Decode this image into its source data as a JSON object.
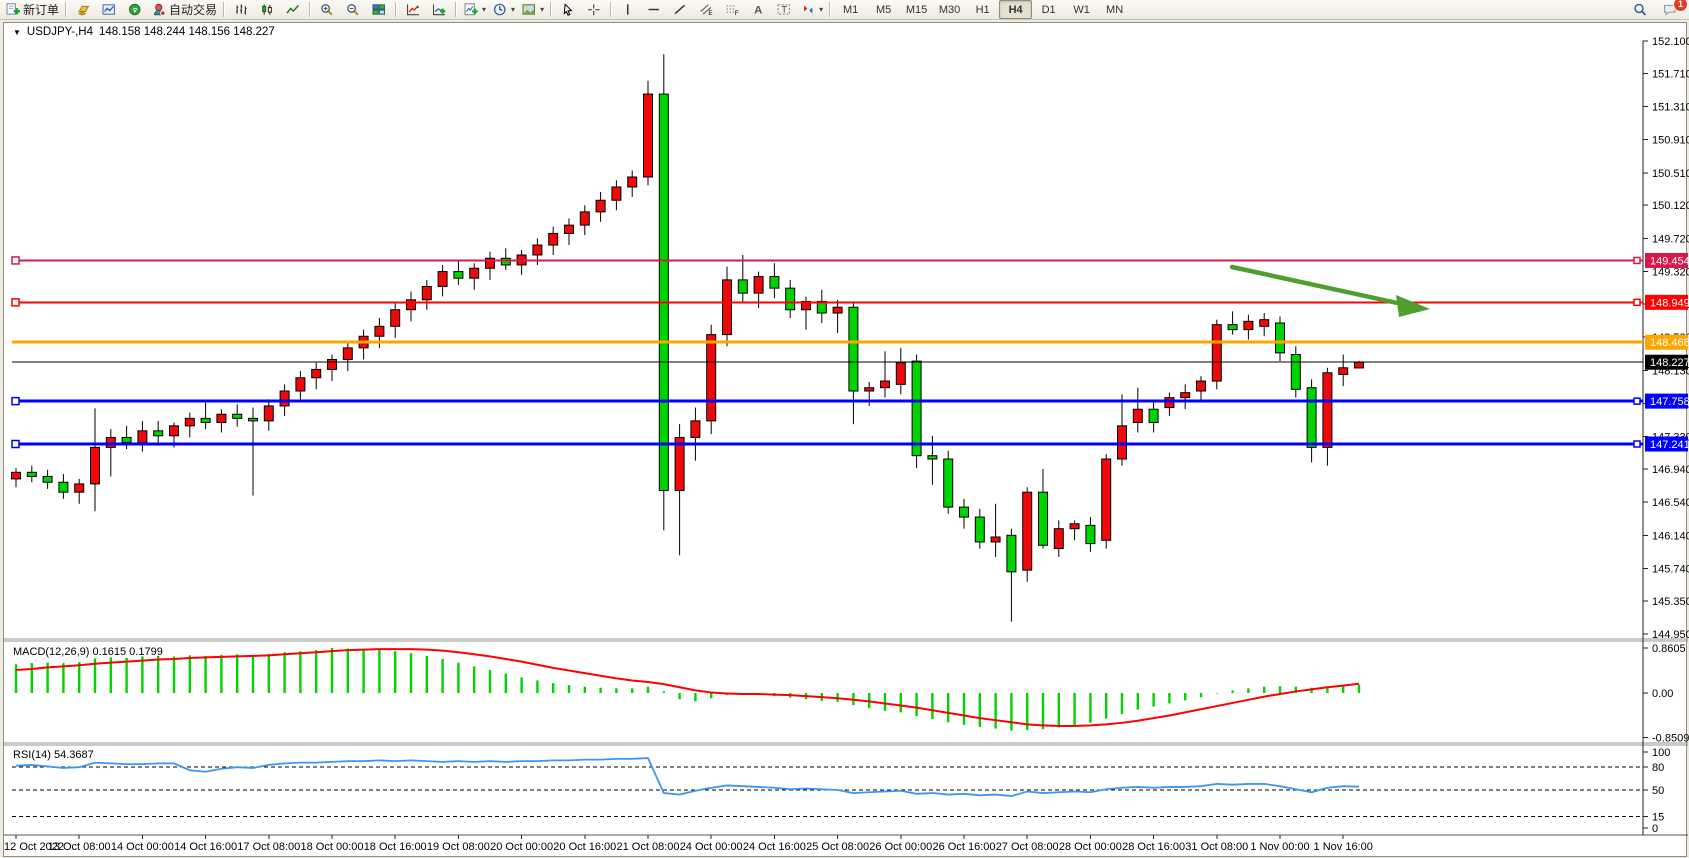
{
  "toolbar": {
    "buttons": [
      {
        "name": "new-order",
        "label": "新订单"
      },
      {
        "name": "sep"
      },
      {
        "name": "quotes"
      },
      {
        "name": "charts"
      },
      {
        "name": "signals"
      },
      {
        "name": "autotrade",
        "label": "自动交易"
      },
      {
        "name": "sep"
      },
      {
        "name": "bar-chart"
      },
      {
        "name": "candlestick"
      },
      {
        "name": "line-chart"
      },
      {
        "name": "sep"
      },
      {
        "name": "zoom-in"
      },
      {
        "name": "zoom-out"
      },
      {
        "name": "tile-windows"
      },
      {
        "name": "sep"
      },
      {
        "name": "indicator-list"
      },
      {
        "name": "indicator-add"
      },
      {
        "name": "sep"
      },
      {
        "name": "new-chart",
        "dropdown": true
      },
      {
        "name": "periods-clock",
        "dropdown": true
      },
      {
        "name": "templates",
        "dropdown": true
      },
      {
        "name": "sep"
      },
      {
        "name": "cursor"
      },
      {
        "name": "crosshair"
      },
      {
        "name": "sep"
      },
      {
        "name": "vertical-line"
      },
      {
        "name": "horizontal-line"
      },
      {
        "name": "trendline"
      },
      {
        "name": "equidistant-channel"
      },
      {
        "name": "fibonacci"
      },
      {
        "name": "text"
      },
      {
        "name": "text-label"
      },
      {
        "name": "arrows",
        "dropdown": true
      },
      {
        "name": "sep"
      }
    ],
    "timeframes": [
      "M1",
      "M5",
      "M15",
      "M30",
      "H1",
      "H4",
      "D1",
      "W1",
      "MN"
    ],
    "active_timeframe": "H4",
    "right_buttons": [
      {
        "name": "search"
      },
      {
        "name": "chat",
        "badge": "1"
      }
    ]
  },
  "window": {
    "collapse_marker": "▼",
    "title_symbol": "USDJPY-,H4",
    "title_quote": "148.158 148.244 148.156 148.227"
  },
  "chart_data": {
    "type": "candlestick",
    "symbol": "USDJPY-",
    "timeframe": "H4",
    "current_ohlc": {
      "open": 148.158,
      "high": 148.244,
      "low": 148.156,
      "close": 148.227
    },
    "ylim": [
      144.95,
      152.1
    ],
    "price_ticks": [
      "152.100",
      "151.710",
      "151.310",
      "150.910",
      "150.510",
      "150.120",
      "149.720",
      "149.320",
      "148.930",
      "148.530",
      "148.130",
      "147.730",
      "147.330",
      "146.940",
      "146.540",
      "146.140",
      "145.740",
      "145.350",
      "144.950"
    ],
    "x_labels": [
      "12 Oct 2022",
      "13 Oct 08:00",
      "14 Oct 00:00",
      "14 Oct 16:00",
      "17 Oct 08:00",
      "18 Oct 00:00",
      "18 Oct 16:00",
      "19 Oct 08:00",
      "20 Oct 00:00",
      "20 Oct 16:00",
      "21 Oct 08:00",
      "24 Oct 00:00",
      "24 Oct 16:00",
      "25 Oct 08:00",
      "26 Oct 00:00",
      "26 Oct 16:00",
      "27 Oct 08:00",
      "28 Oct 00:00",
      "28 Oct 16:00",
      "31 Oct 08:00",
      "1 Nov 00:00",
      "1 Nov 16:00"
    ],
    "x_label_step": 4,
    "colors": {
      "bull": "#ee0a0a",
      "bear": "#00d400",
      "outline": "#000000",
      "wick": "#000000",
      "arrow": "#4f9e2e"
    },
    "candles": [
      [
        146.82,
        146.95,
        146.72,
        146.9
      ],
      [
        146.9,
        146.98,
        146.78,
        146.85
      ],
      [
        146.85,
        146.93,
        146.7,
        146.78
      ],
      [
        146.78,
        146.88,
        146.58,
        146.66
      ],
      [
        146.66,
        146.82,
        146.52,
        146.76
      ],
      [
        146.76,
        147.67,
        146.43,
        147.2
      ],
      [
        147.2,
        147.42,
        146.85,
        147.32
      ],
      [
        147.32,
        147.46,
        147.18,
        147.26
      ],
      [
        147.26,
        147.52,
        147.15,
        147.4
      ],
      [
        147.4,
        147.52,
        147.22,
        147.34
      ],
      [
        147.34,
        147.5,
        147.2,
        147.46
      ],
      [
        147.46,
        147.62,
        147.32,
        147.55
      ],
      [
        147.55,
        147.74,
        147.42,
        147.5
      ],
      [
        147.5,
        147.66,
        147.38,
        147.6
      ],
      [
        147.6,
        147.72,
        147.45,
        147.55
      ],
      [
        147.55,
        147.68,
        146.62,
        147.52
      ],
      [
        147.52,
        147.78,
        147.4,
        147.7
      ],
      [
        147.7,
        147.96,
        147.58,
        147.88
      ],
      [
        147.88,
        148.12,
        147.76,
        148.04
      ],
      [
        148.04,
        148.22,
        147.9,
        148.14
      ],
      [
        148.14,
        148.32,
        148.0,
        148.26
      ],
      [
        148.26,
        148.48,
        148.12,
        148.4
      ],
      [
        148.4,
        148.62,
        148.26,
        148.54
      ],
      [
        148.54,
        148.76,
        148.4,
        148.66
      ],
      [
        148.66,
        148.94,
        148.52,
        148.86
      ],
      [
        148.86,
        149.08,
        148.72,
        148.98
      ],
      [
        148.98,
        149.22,
        148.86,
        149.14
      ],
      [
        149.14,
        149.4,
        149.02,
        149.32
      ],
      [
        149.32,
        149.46,
        149.16,
        149.24
      ],
      [
        149.24,
        149.42,
        149.1,
        149.36
      ],
      [
        149.36,
        149.56,
        149.22,
        149.48
      ],
      [
        149.48,
        149.6,
        149.34,
        149.4
      ],
      [
        149.4,
        149.58,
        149.28,
        149.52
      ],
      [
        149.52,
        149.72,
        149.4,
        149.64
      ],
      [
        149.64,
        149.86,
        149.52,
        149.78
      ],
      [
        149.78,
        149.96,
        149.64,
        149.88
      ],
      [
        149.88,
        150.12,
        149.76,
        150.04
      ],
      [
        150.04,
        150.28,
        149.92,
        150.18
      ],
      [
        150.18,
        150.42,
        150.06,
        150.34
      ],
      [
        150.34,
        150.54,
        150.22,
        150.46
      ],
      [
        150.46,
        151.62,
        150.36,
        151.46
      ],
      [
        151.46,
        151.94,
        146.2,
        146.68
      ],
      [
        146.68,
        147.48,
        145.9,
        147.32
      ],
      [
        147.32,
        147.68,
        147.04,
        147.52
      ],
      [
        147.52,
        148.68,
        147.36,
        148.56
      ],
      [
        148.56,
        149.38,
        148.42,
        149.22
      ],
      [
        149.22,
        149.52,
        148.96,
        149.06
      ],
      [
        149.06,
        149.32,
        148.88,
        149.26
      ],
      [
        149.26,
        149.42,
        149.0,
        149.12
      ],
      [
        149.12,
        149.22,
        148.76,
        148.86
      ],
      [
        148.86,
        149.02,
        148.62,
        148.96
      ],
      [
        148.96,
        149.1,
        148.7,
        148.82
      ],
      [
        148.82,
        148.98,
        148.58,
        148.89
      ],
      [
        148.89,
        148.96,
        147.48,
        147.88
      ],
      [
        147.88,
        147.99,
        147.7,
        147.92
      ],
      [
        147.92,
        148.36,
        147.8,
        148.0
      ],
      [
        147.96,
        148.4,
        147.84,
        148.22
      ],
      [
        148.24,
        148.32,
        146.95,
        147.1
      ],
      [
        147.1,
        147.34,
        146.75,
        147.06
      ],
      [
        147.06,
        147.16,
        146.4,
        146.48
      ],
      [
        146.48,
        146.58,
        146.22,
        146.36
      ],
      [
        146.36,
        146.46,
        145.98,
        146.06
      ],
      [
        146.06,
        146.52,
        145.88,
        146.12
      ],
      [
        146.14,
        146.22,
        145.1,
        145.7
      ],
      [
        145.72,
        146.72,
        145.58,
        146.66
      ],
      [
        146.66,
        146.94,
        145.98,
        146.02
      ],
      [
        145.98,
        146.32,
        145.88,
        146.22
      ],
      [
        146.22,
        146.32,
        146.08,
        146.28
      ],
      [
        146.26,
        146.36,
        145.94,
        146.04
      ],
      [
        146.08,
        147.12,
        145.98,
        147.06
      ],
      [
        147.06,
        147.84,
        146.98,
        147.46
      ],
      [
        147.5,
        147.92,
        147.38,
        147.66
      ],
      [
        147.66,
        147.76,
        147.38,
        147.5
      ],
      [
        147.68,
        147.86,
        147.58,
        147.8
      ],
      [
        147.8,
        147.96,
        147.66,
        147.86
      ],
      [
        147.88,
        148.06,
        147.74,
        148.0
      ],
      [
        148.0,
        148.74,
        147.9,
        148.68
      ],
      [
        148.68,
        148.84,
        148.56,
        148.62
      ],
      [
        148.62,
        148.8,
        148.5,
        148.72
      ],
      [
        148.66,
        148.82,
        148.54,
        148.74
      ],
      [
        148.7,
        148.78,
        148.24,
        148.34
      ],
      [
        148.32,
        148.42,
        147.8,
        147.9
      ],
      [
        147.92,
        148.02,
        147.02,
        147.2
      ],
      [
        147.2,
        148.16,
        146.98,
        148.1
      ],
      [
        148.08,
        148.32,
        147.94,
        148.16
      ],
      [
        148.158,
        148.244,
        148.156,
        148.227
      ]
    ],
    "hlines": [
      {
        "price": 149.454,
        "label": "149.454",
        "color": "#d8184c",
        "width": 2,
        "handle": true
      },
      {
        "price": 148.949,
        "label": "148.949",
        "color": "#ff0000",
        "width": 2,
        "handle": true
      },
      {
        "price": 148.468,
        "label": "148.468",
        "color": "#ffa500",
        "width": 3,
        "handle": false
      },
      {
        "price": 147.758,
        "label": "147.758",
        "color": "#0000ff",
        "width": 3,
        "handle": true
      },
      {
        "price": 147.241,
        "label": "147.241",
        "color": "#0000ff",
        "width": 3,
        "handle": true
      }
    ],
    "current_price": {
      "value": 148.227,
      "label": "148.227",
      "line_color": "#000000",
      "badge_bg": "#000000"
    },
    "annotations": [
      {
        "type": "arrow",
        "x1": 1228,
        "y1": 266,
        "x2": 1398,
        "y2": 303,
        "head": [
          [
            1392,
            294
          ],
          [
            1426,
            308
          ],
          [
            1395,
            316
          ]
        ],
        "color": "#4f9e2e"
      }
    ],
    "indicators": [
      {
        "name": "MACD",
        "label": "MACD(12,26,9) 0.1615 0.1799",
        "main_value": "0.1615",
        "signal_value": "0.1799",
        "ticks": [
          "0.8605",
          "0.00",
          "-0.8509"
        ],
        "tick_values": [
          0.8605,
          0.0,
          -0.8509
        ],
        "hist_color": "#00d400",
        "signal_color": "#ff0000",
        "histogram": [
          0.55,
          0.57,
          0.58,
          0.57,
          0.59,
          0.66,
          0.68,
          0.67,
          0.7,
          0.71,
          0.7,
          0.72,
          0.71,
          0.73,
          0.74,
          0.72,
          0.75,
          0.78,
          0.8,
          0.82,
          0.86,
          0.85,
          0.84,
          0.82,
          0.8,
          0.76,
          0.71,
          0.65,
          0.58,
          0.51,
          0.44,
          0.37,
          0.3,
          0.24,
          0.19,
          0.15,
          0.12,
          0.1,
          0.09,
          0.09,
          0.12,
          0.03,
          -0.12,
          -0.16,
          -0.1,
          -0.04,
          -0.03,
          -0.04,
          -0.06,
          -0.09,
          -0.12,
          -0.15,
          -0.17,
          -0.23,
          -0.29,
          -0.34,
          -0.37,
          -0.44,
          -0.5,
          -0.56,
          -0.61,
          -0.65,
          -0.68,
          -0.72,
          -0.71,
          -0.69,
          -0.66,
          -0.62,
          -0.57,
          -0.49,
          -0.4,
          -0.32,
          -0.26,
          -0.2,
          -0.14,
          -0.08,
          -0.01,
          0.05,
          0.09,
          0.12,
          0.13,
          0.12,
          0.1,
          0.12,
          0.14,
          0.1615
        ],
        "signal": [
          0.44,
          0.46,
          0.49,
          0.51,
          0.53,
          0.56,
          0.58,
          0.6,
          0.62,
          0.64,
          0.65,
          0.67,
          0.68,
          0.69,
          0.7,
          0.71,
          0.72,
          0.74,
          0.76,
          0.78,
          0.8,
          0.82,
          0.83,
          0.84,
          0.84,
          0.84,
          0.83,
          0.81,
          0.78,
          0.74,
          0.7,
          0.65,
          0.6,
          0.54,
          0.48,
          0.43,
          0.38,
          0.33,
          0.28,
          0.24,
          0.21,
          0.17,
          0.11,
          0.05,
          0.01,
          -0.01,
          -0.02,
          -0.02,
          -0.03,
          -0.04,
          -0.06,
          -0.08,
          -0.1,
          -0.13,
          -0.16,
          -0.2,
          -0.24,
          -0.28,
          -0.33,
          -0.38,
          -0.43,
          -0.48,
          -0.52,
          -0.56,
          -0.6,
          -0.62,
          -0.63,
          -0.63,
          -0.62,
          -0.6,
          -0.57,
          -0.53,
          -0.48,
          -0.43,
          -0.37,
          -0.31,
          -0.25,
          -0.19,
          -0.13,
          -0.07,
          -0.02,
          0.03,
          0.07,
          0.11,
          0.14,
          0.1799
        ]
      },
      {
        "name": "RSI",
        "label": "RSI(14) 54.3687",
        "value": "54.3687",
        "ticks": [
          "100",
          "80",
          "50",
          "15",
          "0"
        ],
        "tick_values": [
          100,
          80,
          50,
          15,
          0
        ],
        "dashed_levels": [
          80,
          50,
          15
        ],
        "line_color": "#3b97ef",
        "values": [
          82,
          83,
          81,
          79,
          80,
          86,
          85,
          84,
          84,
          85,
          85,
          76,
          74,
          78,
          80,
          79,
          83,
          85,
          86,
          86,
          87,
          88,
          88,
          89,
          88,
          89,
          88,
          87,
          88,
          87,
          88,
          87,
          88,
          88,
          89,
          89,
          90,
          90,
          91,
          91,
          92,
          46,
          44,
          49,
          53,
          56,
          55,
          54,
          53,
          51,
          52,
          51,
          50,
          46,
          47,
          48,
          49,
          45,
          46,
          44,
          45,
          43,
          44,
          42,
          48,
          46,
          47,
          48,
          47,
          51,
          53,
          54,
          53,
          54,
          54,
          55,
          58,
          57,
          58,
          58,
          55,
          51,
          47,
          53,
          55,
          54.3687
        ]
      }
    ]
  }
}
